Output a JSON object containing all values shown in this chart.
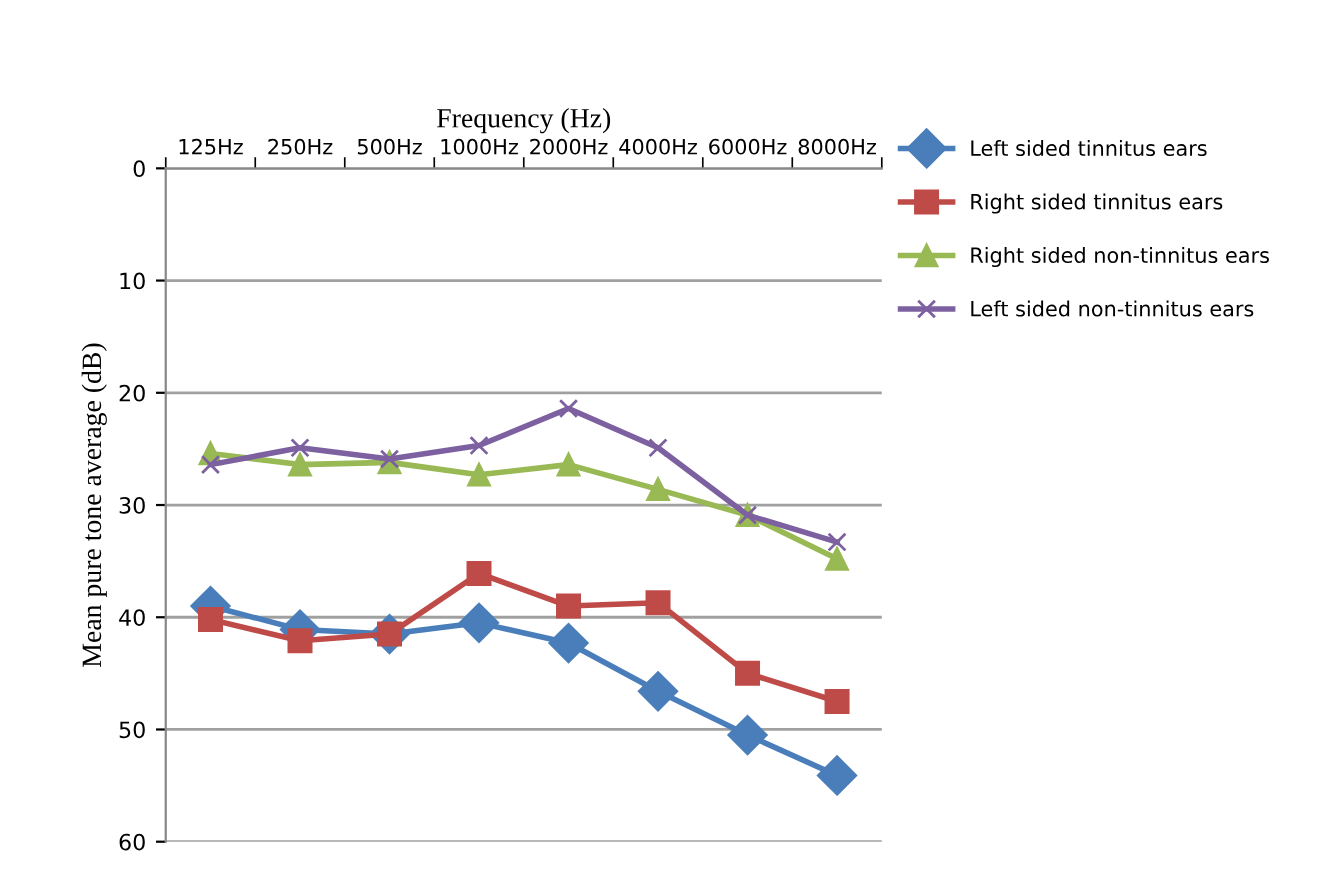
{
  "chart_data": {
    "type": "line",
    "xlabel": "Frequency (Hz)",
    "ylabel": "Mean pure tone average (dB)",
    "categories": [
      "125Hz",
      "250Hz",
      "500Hz",
      "1000Hz",
      "2000Hz",
      "4000Hz",
      "6000Hz",
      "8000Hz"
    ],
    "series": [
      {
        "name": "Left sided tinnitus ears",
        "color": "#4a7ebb",
        "marker": "diamond",
        "values": [
          39.0,
          41.1,
          41.5,
          40.5,
          42.3,
          46.6,
          50.5,
          54.1
        ]
      },
      {
        "name": "Right sided tinnitus ears",
        "color": "#be4b48",
        "marker": "square",
        "values": [
          40.2,
          42.1,
          41.5,
          36.1,
          39.0,
          38.7,
          45.0,
          47.5
        ]
      },
      {
        "name": "Right sided non-tinnitus ears",
        "color": "#98b954",
        "marker": "triangle",
        "values": [
          25.4,
          26.4,
          26.2,
          27.3,
          26.4,
          28.6,
          30.9,
          34.8
        ]
      },
      {
        "name": "Left sided non-tinnitus ears",
        "color": "#7d60a0",
        "marker": "cross",
        "values": [
          26.4,
          24.9,
          25.9,
          24.7,
          21.4,
          24.9,
          30.9,
          33.3
        ]
      }
    ],
    "ylim": [
      60,
      0
    ],
    "yticks": [
      0,
      10,
      20,
      30,
      40,
      50,
      60
    ],
    "grid": "y",
    "legend": "top right",
    "line_style": "solid"
  }
}
